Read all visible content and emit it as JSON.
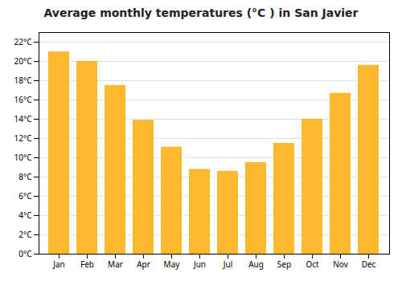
{
  "chart_data": {
    "type": "bar",
    "title": "Average monthly temperatures (°C ) in San Javier",
    "categories": [
      "Jan",
      "Feb",
      "Mar",
      "Apr",
      "May",
      "Jun",
      "Jul",
      "Aug",
      "Sep",
      "Oct",
      "Nov",
      "Dec"
    ],
    "values": [
      21.0,
      20.0,
      17.5,
      13.9,
      11.1,
      8.8,
      8.6,
      9.5,
      11.5,
      14.0,
      16.7,
      19.6
    ],
    "color": "#FDB92E",
    "ylim": [
      0,
      23
    ],
    "yticks": [
      {
        "value": 0,
        "label": "0°C"
      },
      {
        "value": 2,
        "label": "2°C"
      },
      {
        "value": 4,
        "label": "4°C"
      },
      {
        "value": 6,
        "label": "6°C"
      },
      {
        "value": 8,
        "label": "8°C"
      },
      {
        "value": 10,
        "label": "10°C"
      },
      {
        "value": 12,
        "label": "12°C"
      },
      {
        "value": 14,
        "label": "14°C"
      },
      {
        "value": 16,
        "label": "16°C"
      },
      {
        "value": 18,
        "label": "18°C"
      },
      {
        "value": 20,
        "label": "20°C"
      },
      {
        "value": 22,
        "label": "22°C"
      }
    ],
    "grid": true
  }
}
